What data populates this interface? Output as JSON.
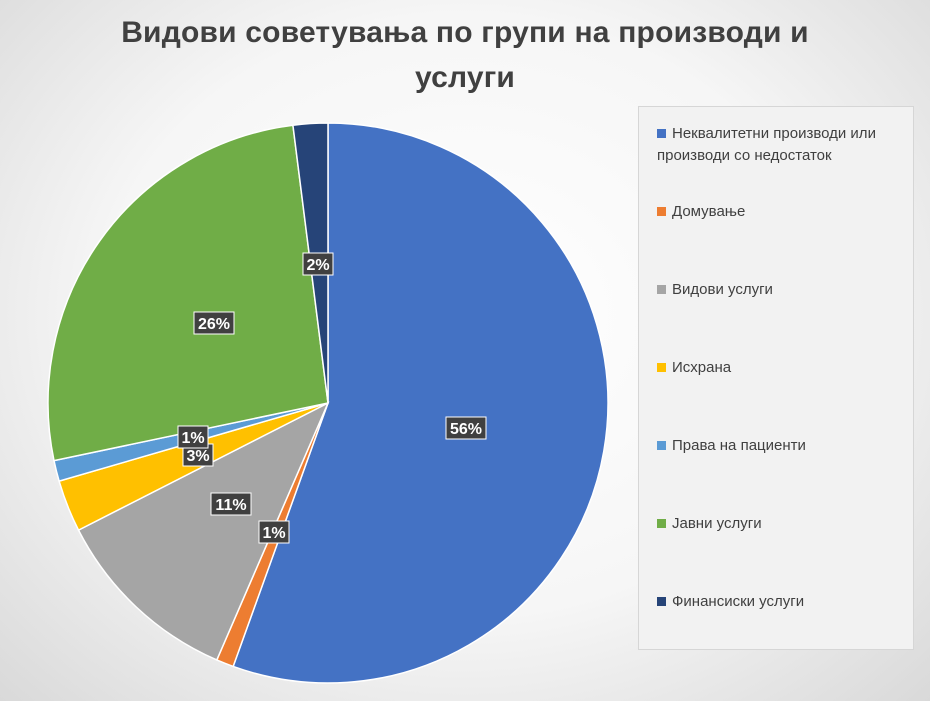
{
  "chart_data": {
    "type": "pie",
    "title": "Видови советувања по групи на производи и услуги",
    "title_lines": [
      "Видови советувања по групи на производи и",
      "услуги"
    ],
    "legend_position": "right",
    "start_angle_deg": 0,
    "direction": "clockwise",
    "series": [
      {
        "name": "Неквалитетни производи или производи со недостаток",
        "value": 55.5,
        "label": "56%",
        "color": "#4472C4"
      },
      {
        "name": "Домување",
        "value": 1.0,
        "label": "1%",
        "color": "#ED7D31"
      },
      {
        "name": "Видови услуги",
        "value": 11.0,
        "label": "11%",
        "color": "#A5A5A5"
      },
      {
        "name": "Исхрана",
        "value": 3.0,
        "label": "3%",
        "color": "#FFC000"
      },
      {
        "name": "Права на пациенти",
        "value": 1.2,
        "label": "1%",
        "color": "#5B9BD5"
      },
      {
        "name": "Јавни услуги",
        "value": 26.3,
        "label": "26%",
        "color": "#70AD47"
      },
      {
        "name": "Финансиски услуги",
        "value": 2.0,
        "label": "2%",
        "color": "#264478"
      }
    ]
  }
}
